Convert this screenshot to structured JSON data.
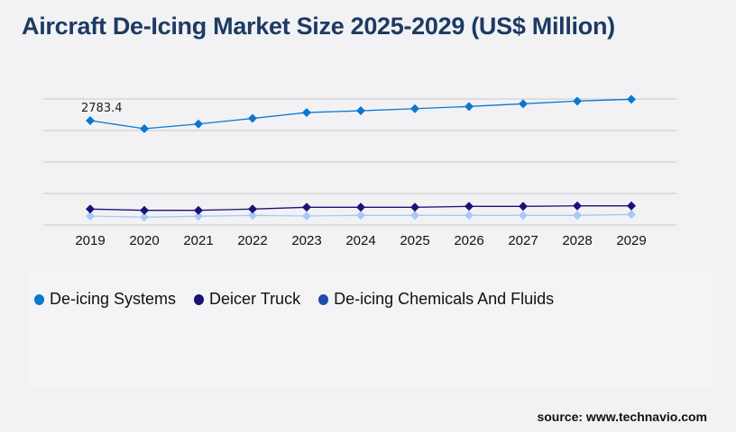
{
  "title": "Aircraft De-Icing Market Size 2025-2029 (US$ Million)",
  "source": "source: www.technavio.com",
  "chart_data": {
    "type": "line",
    "title": "Aircraft De-Icing Market Size 2025-2029 (US$ Million)",
    "categories": [
      "2019",
      "2020",
      "2021",
      "2022",
      "2023",
      "2024",
      "2025",
      "2026",
      "2027",
      "2028",
      "2029"
    ],
    "ylim": [
      0,
      3360
    ],
    "grid": true,
    "legend_position": "bottom-left",
    "annotations": [
      {
        "series": 0,
        "index": 0,
        "label": "2783.4"
      }
    ],
    "series": [
      {
        "name": "De-icing Systems",
        "color": "#0b78d0",
        "legend_color": "#0b78d0",
        "values": [
          2783.4,
          2568,
          2694,
          2843,
          2999,
          3047,
          3102,
          3160,
          3232,
          3304,
          3352
        ]
      },
      {
        "name": "Deicer Truck",
        "color": "#1a1278",
        "legend_color": "#1a1278",
        "values": [
          425,
          391,
          391,
          425,
          473,
          473,
          473,
          497,
          497,
          511,
          511
        ]
      },
      {
        "name": "De-icing Chemicals And Fluids",
        "color": "#a8c8f8",
        "legend_color": "#1f4aa8",
        "values": [
          240,
          209,
          233,
          257,
          240,
          257,
          257,
          257,
          257,
          257,
          281
        ]
      }
    ]
  }
}
